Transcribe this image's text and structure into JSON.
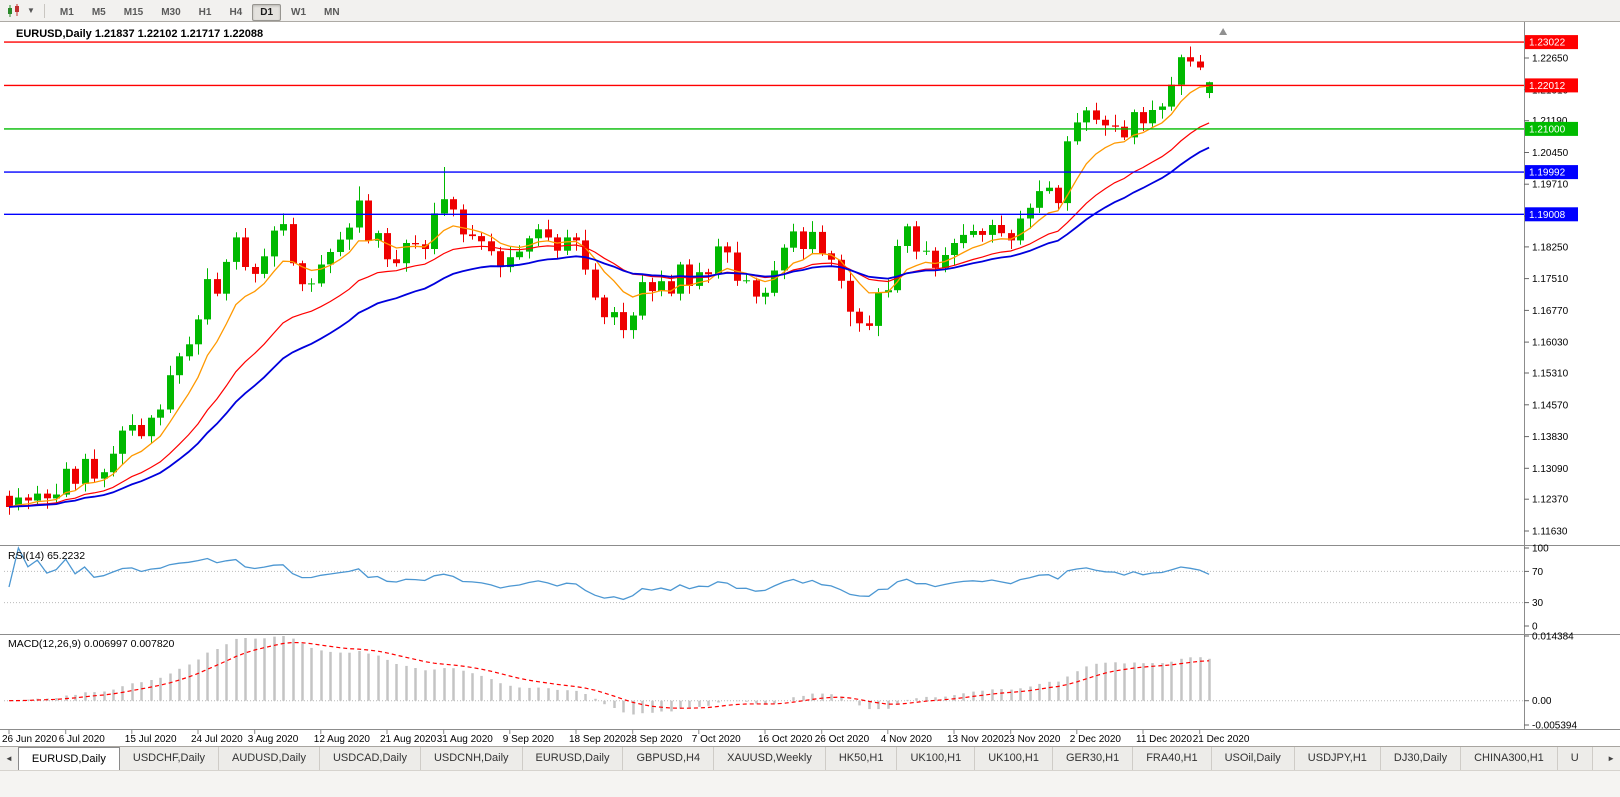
{
  "toolbar": {
    "chart_icon_name": "candlestick-chart-icon",
    "timeframes": [
      {
        "label": "M1",
        "active": false
      },
      {
        "label": "M5",
        "active": false
      },
      {
        "label": "M15",
        "active": false
      },
      {
        "label": "M30",
        "active": false
      },
      {
        "label": "H1",
        "active": false
      },
      {
        "label": "H4",
        "active": false
      },
      {
        "label": "D1",
        "active": true
      },
      {
        "label": "W1",
        "active": false
      },
      {
        "label": "MN",
        "active": false
      }
    ]
  },
  "chart": {
    "title_line": "EURUSD,Daily 1.21837 1.22102 1.21717 1.22088"
  },
  "chart_data": {
    "type": "candlestick",
    "symbol": "EURUSD",
    "period": "Daily",
    "ohlc_current": {
      "open": 1.21837,
      "high": 1.22102,
      "low": 1.21717,
      "close": 1.22088
    },
    "price_range": {
      "max": 1.2335,
      "min": 1.1135
    },
    "price_axis_ticks": [
      "1.22650",
      "1.21910",
      "1.21190",
      "1.20450",
      "1.19710",
      "1.18970",
      "1.18250",
      "1.17510",
      "1.16770",
      "1.16030",
      "1.15310",
      "1.14570",
      "1.13830",
      "1.13090",
      "1.12370",
      "1.11630"
    ],
    "x_labels": [
      {
        "i": 0,
        "label": "26 Jun 2020"
      },
      {
        "i": 6,
        "label": "6 Jul 2020"
      },
      {
        "i": 13,
        "label": "15 Jul 2020"
      },
      {
        "i": 20,
        "label": "24 Jul 2020"
      },
      {
        "i": 26,
        "label": "3 Aug 2020"
      },
      {
        "i": 33,
        "label": "12 Aug 2020"
      },
      {
        "i": 40,
        "label": "21 Aug 2020"
      },
      {
        "i": 46,
        "label": "31 Aug 2020"
      },
      {
        "i": 53,
        "label": "9 Sep 2020"
      },
      {
        "i": 60,
        "label": "18 Sep 2020"
      },
      {
        "i": 66,
        "label": "28 Sep 2020"
      },
      {
        "i": 73,
        "label": "7 Oct 2020"
      },
      {
        "i": 80,
        "label": "16 Oct 2020"
      },
      {
        "i": 86,
        "label": "26 Oct 2020"
      },
      {
        "i": 93,
        "label": "4 Nov 2020"
      },
      {
        "i": 100,
        "label": "13 Nov 2020"
      },
      {
        "i": 106,
        "label": "23 Nov 2020"
      },
      {
        "i": 113,
        "label": "2 Dec 2020"
      },
      {
        "i": 120,
        "label": "11 Dec 2020"
      },
      {
        "i": 126,
        "label": "21 Dec 2020"
      }
    ],
    "closes": [
      1.1219,
      1.1241,
      1.1234,
      1.125,
      1.1239,
      1.1248,
      1.1308,
      1.1273,
      1.1331,
      1.1285,
      1.13,
      1.1343,
      1.1397,
      1.141,
      1.1384,
      1.1427,
      1.1446,
      1.1526,
      1.157,
      1.1598,
      1.1656,
      1.175,
      1.1716,
      1.179,
      1.1847,
      1.1778,
      1.1762,
      1.1803,
      1.1863,
      1.1878,
      1.1787,
      1.1738,
      1.174,
      1.1784,
      1.1813,
      1.1842,
      1.187,
      1.1933,
      1.1839,
      1.1857,
      1.1796,
      1.1787,
      1.1834,
      1.1831,
      1.182,
      1.1903,
      1.1936,
      1.1912,
      1.1854,
      1.185,
      1.1838,
      1.1815,
      1.1778,
      1.1801,
      1.1814,
      1.1845,
      1.1866,
      1.1847,
      1.1816,
      1.1847,
      1.184,
      1.1772,
      1.1707,
      1.1661,
      1.1673,
      1.1631,
      1.1665,
      1.1743,
      1.1722,
      1.1745,
      1.1716,
      1.1784,
      1.1734,
      1.1766,
      1.1761,
      1.1826,
      1.1812,
      1.1746,
      1.1747,
      1.1709,
      1.1718,
      1.177,
      1.1823,
      1.1861,
      1.182,
      1.186,
      1.181,
      1.1795,
      1.1746,
      1.1674,
      1.1647,
      1.1641,
      1.1719,
      1.1724,
      1.1827,
      1.1873,
      1.1814,
      1.1816,
      1.1776,
      1.1806,
      1.1834,
      1.1853,
      1.1862,
      1.1853,
      1.1876,
      1.1857,
      1.184,
      1.1891,
      1.1916,
      1.1955,
      1.1963,
      1.1927,
      1.2071,
      1.2115,
      1.2143,
      1.2121,
      1.2108,
      1.2105,
      1.208,
      1.2139,
      1.2113,
      1.2144,
      1.2152,
      1.2203,
      1.2267,
      1.2257,
      1.2243,
      1.22088
    ],
    "first_open": 1.1245,
    "last_ohlc": [
      1.21837,
      1.22102,
      1.21717,
      1.22088
    ],
    "wick_up": [
      0.0012,
      0.0022,
      0.0008,
      0.0018,
      0.001,
      0.0025,
      0.0015,
      0.0006
    ],
    "wick_dn": [
      0.0018,
      0.0008,
      0.002,
      0.001,
      0.0024,
      0.0012,
      0.0006,
      0.0016
    ],
    "high_overrides": {
      "37": 1.1966,
      "46": 1.2011,
      "124": 1.2273
    },
    "low_overrides": {
      "65": 1.1612,
      "89": 1.164
    },
    "levels": [
      {
        "price": 1.23022,
        "label": "1.23022",
        "color": "#FF0000"
      },
      {
        "price": 1.22012,
        "label": "1.22012",
        "color": "#FF0000"
      },
      {
        "price": 1.21,
        "label": "1.21000",
        "color": "#00BB00"
      },
      {
        "price": 1.19992,
        "label": "1.19992",
        "color": "#0000FF"
      },
      {
        "price": 1.19008,
        "label": "1.19008",
        "color": "#0000FF"
      }
    ],
    "moving_averages": [
      {
        "period": 8,
        "type": "ema",
        "color": "#FF9900",
        "width": 1.3
      },
      {
        "period": 20,
        "type": "ema",
        "color": "#FF0000",
        "width": 1.2
      },
      {
        "period": 30,
        "type": "ema",
        "color": "#0000DD",
        "width": 1.8
      }
    ],
    "candle_colors": {
      "up": "#00B800",
      "down": "#EE0000"
    },
    "rsi": {
      "label": "RSI(14) 65.2232",
      "period": 14,
      "current": 65.2232,
      "color": "#4C97D2",
      "axis_ticks": [
        100,
        70,
        30,
        0
      ],
      "guide_levels": [
        70,
        30
      ]
    },
    "macd": {
      "label": "MACD(12,26,9) 0.006997 0.007820",
      "fast": 12,
      "slow": 26,
      "signal": 9,
      "main_current": 0.006997,
      "signal_current": 0.00782,
      "hist_color": "#C4C4C4",
      "signal_color": "#FF0000",
      "axis": {
        "max": 0.014384,
        "min": -0.005394,
        "ticks": [
          {
            "v": 0.014384,
            "label": "0.014384"
          },
          {
            "v": 0,
            "label": "0.00"
          },
          {
            "v": -0.005394,
            "label": "-0.005394"
          }
        ]
      }
    }
  },
  "tabs": {
    "scroll_left": "◄",
    "scroll_right": "►",
    "items": [
      {
        "label": "EURUSD,Daily",
        "active": true
      },
      {
        "label": "USDCHF,Daily",
        "active": false
      },
      {
        "label": "AUDUSD,Daily",
        "active": false
      },
      {
        "label": "USDCAD,Daily",
        "active": false
      },
      {
        "label": "USDCNH,Daily",
        "active": false
      },
      {
        "label": "EURUSD,Daily",
        "active": false
      },
      {
        "label": "GBPUSD,H4",
        "active": false
      },
      {
        "label": "XAUUSD,Weekly",
        "active": false
      },
      {
        "label": "HK50,H1",
        "active": false
      },
      {
        "label": "UK100,H1",
        "active": false
      },
      {
        "label": "UK100,H1",
        "active": false
      },
      {
        "label": "GER30,H1",
        "active": false
      },
      {
        "label": "FRA40,H1",
        "active": false
      },
      {
        "label": "USOil,Daily",
        "active": false
      },
      {
        "label": "USDJPY,H1",
        "active": false
      },
      {
        "label": "DJ30,Daily",
        "active": false
      },
      {
        "label": "CHINA300,H1",
        "active": false
      },
      {
        "label": "U",
        "active": false,
        "partial": true
      }
    ]
  }
}
